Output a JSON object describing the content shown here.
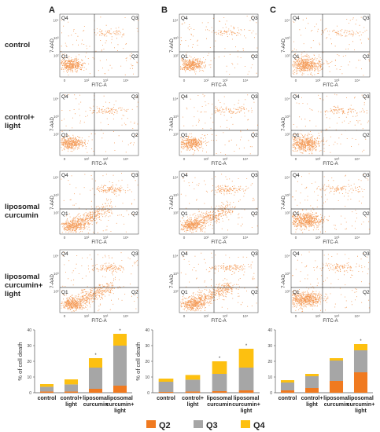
{
  "colors": {
    "Q2": "#f07a20",
    "Q3": "#a6a6a6",
    "Q4": "#fdc010",
    "dots": "#f07a20",
    "axis": "#555555",
    "gate": "#444444"
  },
  "panel_letters": [
    "A",
    "B",
    "C"
  ],
  "row_labels": [
    [
      "control"
    ],
    [
      "control+",
      "light"
    ],
    [
      "liposomal",
      "curcumin"
    ],
    [
      "liposomal",
      "curcumin+",
      "light"
    ]
  ],
  "flow": {
    "x_axis_label": "FITC-A",
    "y_axis_label": "7-AAD",
    "x_ticks": [
      "0",
      "10²",
      "10³",
      "10⁴"
    ],
    "y_ticks": [
      "10⁴",
      "10³",
      "10²"
    ],
    "quadrants": [
      "Q1",
      "Q2",
      "Q3",
      "Q4"
    ]
  },
  "chart_data": [
    {
      "type": "bar",
      "stacked": true,
      "panel": "A",
      "ylabel": "% of cell death",
      "ylim": [
        0,
        40
      ],
      "yticks": [
        0,
        10,
        20,
        30,
        40
      ],
      "grid": false,
      "categories": [
        [
          "control"
        ],
        [
          "control+",
          "light"
        ],
        [
          "liposomal",
          "curcumin"
        ],
        [
          "liposomal",
          "curcumin+",
          "light"
        ]
      ],
      "series": [
        {
          "name": "Q2",
          "values": [
            0.8,
            0.8,
            2.5,
            4.5
          ]
        },
        {
          "name": "Q3",
          "values": [
            3.0,
            4.5,
            13.5,
            25.5
          ]
        },
        {
          "name": "Q4",
          "values": [
            1.7,
            3.2,
            6.0,
            7.5
          ]
        }
      ],
      "annotations": [
        "",
        "",
        "*",
        "*"
      ]
    },
    {
      "type": "bar",
      "stacked": true,
      "panel": "B",
      "ylabel": "% of cell death",
      "ylim": [
        0,
        40
      ],
      "yticks": [
        0,
        10,
        20,
        30,
        40
      ],
      "grid": false,
      "categories": [
        [
          "control"
        ],
        [
          "control+",
          "light"
        ],
        [
          "liposomal",
          "curcumin"
        ],
        [
          "liposomal",
          "curcumin+",
          "light"
        ]
      ],
      "series": [
        {
          "name": "Q2",
          "values": [
            0.5,
            0.8,
            1.0,
            1.5
          ]
        },
        {
          "name": "Q3",
          "values": [
            6.5,
            7.5,
            11.0,
            14.5
          ]
        },
        {
          "name": "Q4",
          "values": [
            2.0,
            3.0,
            8.0,
            12.0
          ]
        }
      ],
      "annotations": [
        "",
        "",
        "*",
        "*"
      ]
    },
    {
      "type": "bar",
      "stacked": true,
      "panel": "C",
      "ylabel": "",
      "ylim": [
        0,
        40
      ],
      "yticks": [
        0,
        10,
        20,
        30,
        40
      ],
      "grid": false,
      "categories": [
        [
          "control"
        ],
        [
          "control+",
          "light"
        ],
        [
          "liposomal",
          "curcumin"
        ],
        [
          "liposomal",
          "curcumin+",
          "light"
        ]
      ],
      "series": [
        {
          "name": "Q2",
          "values": [
            1.5,
            3.0,
            7.5,
            13.0
          ]
        },
        {
          "name": "Q3",
          "values": [
            5.0,
            7.5,
            13.0,
            14.0
          ]
        },
        {
          "name": "Q4",
          "values": [
            1.5,
            1.5,
            1.5,
            4.0
          ]
        }
      ],
      "annotations": [
        "",
        "",
        "",
        "*"
      ]
    }
  ],
  "legend": {
    "placement": "bottom",
    "items": [
      "Q2",
      "Q3",
      "Q4"
    ]
  }
}
